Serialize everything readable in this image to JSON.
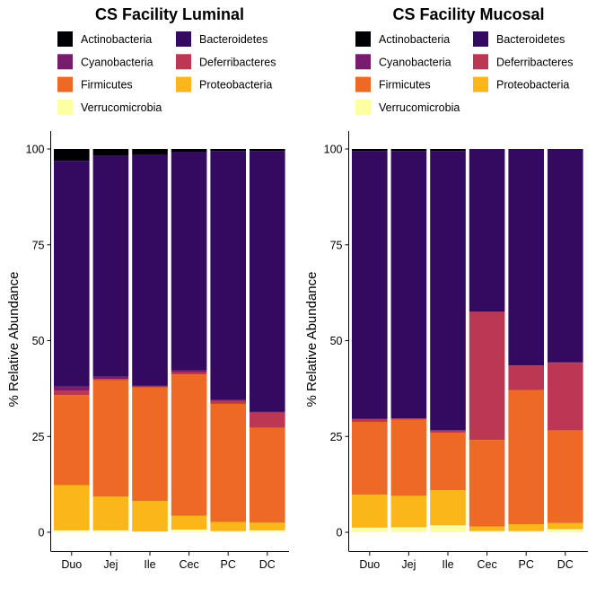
{
  "phyla": [
    {
      "name": "Actinobacteria",
      "color": "#000004"
    },
    {
      "name": "Bacteroidetes",
      "color": "#330a5f"
    },
    {
      "name": "Cyanobacteria",
      "color": "#781c6d"
    },
    {
      "name": "Deferribacteres",
      "color": "#bb3754"
    },
    {
      "name": "Firmicutes",
      "color": "#ed6925"
    },
    {
      "name": "Proteobacteria",
      "color": "#fbb61a"
    },
    {
      "name": "Verrucomicrobia",
      "color": "#fcffa4"
    }
  ],
  "chart_data": [
    {
      "type": "bar",
      "stacked": true,
      "title": "CS Facility Luminal",
      "ylabel": "% Relative Abundance",
      "xlabel": "",
      "ylim": [
        0,
        100
      ],
      "yticks": [
        0,
        25,
        50,
        75,
        100
      ],
      "categories": [
        "Duo",
        "Jej",
        "Ile",
        "Cec",
        "PC",
        "DC"
      ],
      "series": [
        {
          "name": "Verrucomicrobia",
          "values": [
            0.5,
            0.5,
            0.2,
            0.7,
            0.3,
            0.5
          ]
        },
        {
          "name": "Proteobacteria",
          "values": [
            11.8,
            8.8,
            8.0,
            3.6,
            2.4,
            2.0
          ]
        },
        {
          "name": "Firmicutes",
          "values": [
            23.5,
            30.4,
            29.6,
            36.9,
            30.8,
            24.8
          ]
        },
        {
          "name": "Deferribacteres",
          "values": [
            1.2,
            0.3,
            0.2,
            0.6,
            0.8,
            3.9
          ]
        },
        {
          "name": "Cyanobacteria",
          "values": [
            1.0,
            0.6,
            0.2,
            0.4,
            0.2,
            0.2
          ]
        },
        {
          "name": "Bacteroidetes",
          "values": [
            58.9,
            57.6,
            60.2,
            57.0,
            65.0,
            68.1
          ]
        },
        {
          "name": "Actinobacteria",
          "values": [
            3.1,
            1.8,
            1.6,
            0.8,
            0.5,
            0.5
          ]
        }
      ]
    },
    {
      "type": "bar",
      "stacked": true,
      "title": "CS Facility Mucosal",
      "ylabel": "% Relative Abundance",
      "xlabel": "",
      "ylim": [
        0,
        100
      ],
      "yticks": [
        0,
        25,
        50,
        75,
        100
      ],
      "categories": [
        "Duo",
        "Jej",
        "Ile",
        "Cec",
        "PC",
        "DC"
      ],
      "series": [
        {
          "name": "Verrucomicrobia",
          "values": [
            1.2,
            1.3,
            1.8,
            0.3,
            0.3,
            0.8
          ]
        },
        {
          "name": "Proteobacteria",
          "values": [
            8.6,
            8.2,
            9.2,
            1.2,
            1.8,
            1.6
          ]
        },
        {
          "name": "Firmicutes",
          "values": [
            19.0,
            19.9,
            15.0,
            22.6,
            35.0,
            24.2
          ]
        },
        {
          "name": "Deferribacteres",
          "values": [
            0.7,
            0.2,
            0.5,
            33.4,
            6.3,
            17.6
          ]
        },
        {
          "name": "Cyanobacteria",
          "values": [
            0.1,
            0.1,
            0.1,
            0.1,
            0.1,
            0.1
          ]
        },
        {
          "name": "Bacteroidetes",
          "values": [
            69.9,
            69.8,
            72.9,
            42.3,
            56.3,
            55.5
          ]
        },
        {
          "name": "Actinobacteria",
          "values": [
            0.5,
            0.5,
            0.5,
            0.1,
            0.2,
            0.2
          ]
        }
      ]
    }
  ]
}
